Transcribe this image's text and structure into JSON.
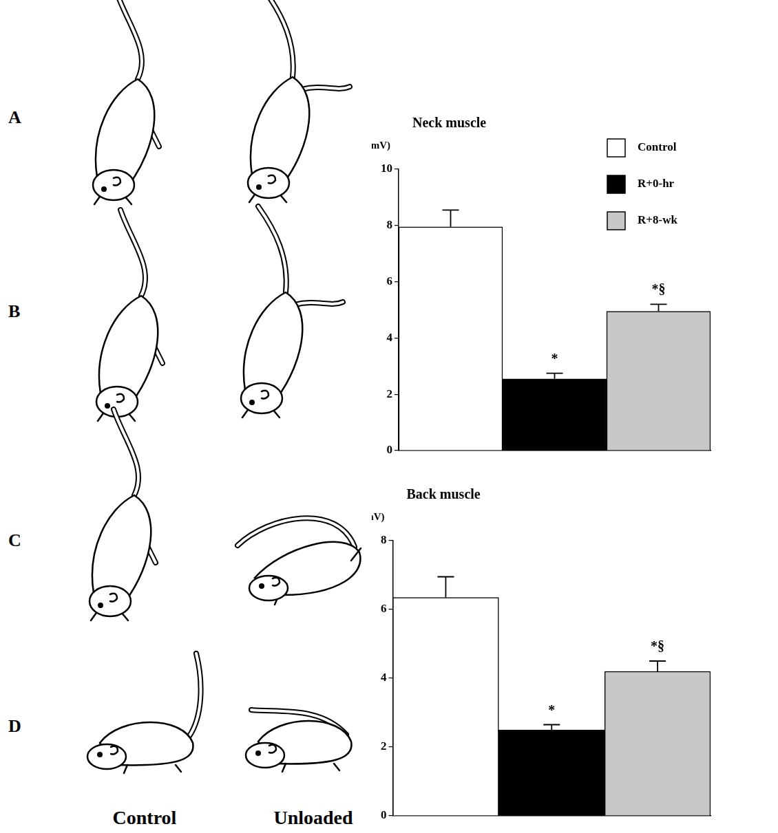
{
  "figure": {
    "row_labels": [
      "A",
      "B",
      "C",
      "D"
    ],
    "column_labels": [
      "Control",
      "Unloaded"
    ]
  },
  "chart_data": [
    {
      "type": "bar",
      "title": "Neck muscle",
      "y_label": "(mV)",
      "categories": [
        "Control",
        "R+0-hr",
        "R+8-wk"
      ],
      "values": [
        7.95,
        2.55,
        4.95
      ],
      "errors": [
        0.6,
        0.2,
        0.25
      ],
      "annotations": [
        null,
        "*",
        "*§"
      ],
      "colors": [
        "#ffffff",
        "#000000",
        "#c8c8c8"
      ],
      "ylim": [
        0,
        10
      ],
      "yticks": [
        0,
        2,
        4,
        6,
        8,
        10
      ],
      "grid": false,
      "legend": "top-right",
      "tick_labels": "y"
    },
    {
      "type": "bar",
      "title": "Back muscle",
      "y_label": "(mV)",
      "categories": [
        "Control",
        "R+0-hr",
        "R+8-wk"
      ],
      "values": [
        6.35,
        2.5,
        4.2
      ],
      "errors": [
        0.6,
        0.15,
        0.3
      ],
      "annotations": [
        null,
        "*",
        "*§"
      ],
      "colors": [
        "#ffffff",
        "#000000",
        "#c8c8c8"
      ],
      "ylim": [
        0,
        8
      ],
      "yticks": [
        0,
        2,
        4,
        6,
        8
      ],
      "grid": false,
      "tick_labels": "y"
    }
  ]
}
